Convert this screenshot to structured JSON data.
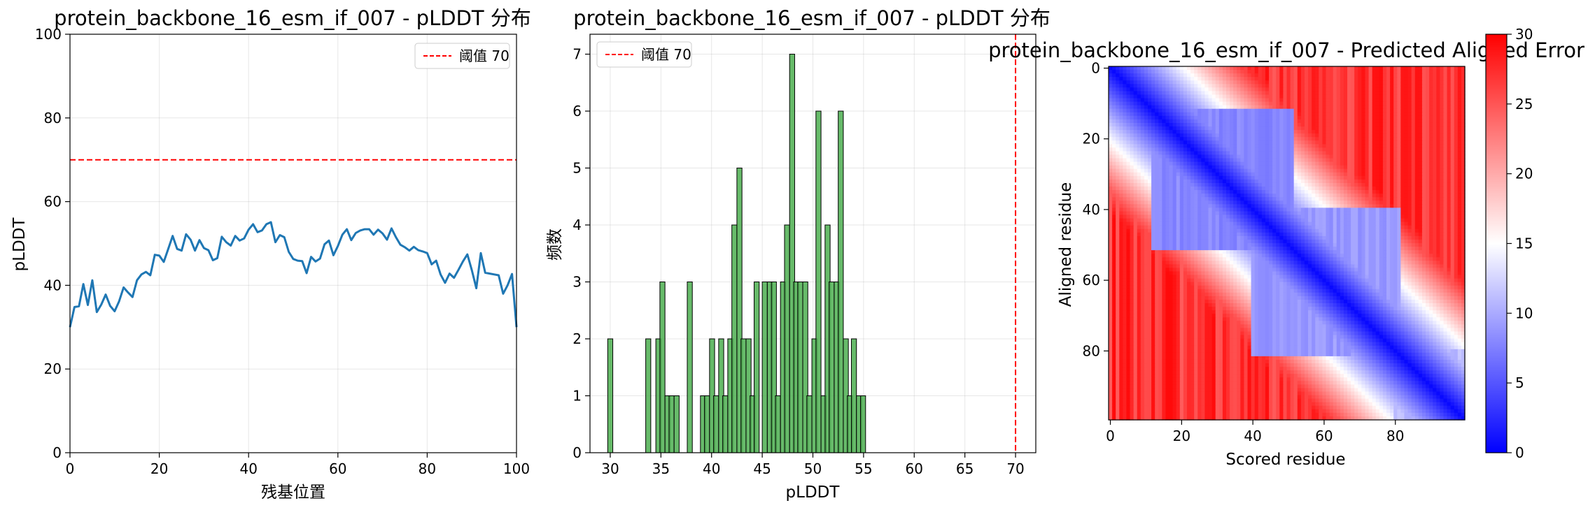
{
  "chart_data": [
    {
      "type": "line",
      "title": "protein_backbone_16_esm_if_007 - pLDDT 分布",
      "xlabel": "残基位置",
      "ylabel": "pLDDT",
      "xlim": [
        0,
        100
      ],
      "ylim": [
        0,
        100
      ],
      "xticks": [
        0,
        20,
        40,
        60,
        80,
        100
      ],
      "yticks": [
        0,
        20,
        40,
        60,
        80,
        100
      ],
      "grid": true,
      "legend_position": "top-right",
      "threshold": {
        "value": 70,
        "label": "阈值 70",
        "color": "#ff0000"
      },
      "line_color": "#1f77b4",
      "x": [
        0,
        1,
        2,
        3,
        4,
        5,
        6,
        7,
        8,
        9,
        10,
        11,
        12,
        13,
        14,
        15,
        16,
        17,
        18,
        19,
        20,
        21,
        22,
        23,
        24,
        25,
        26,
        27,
        28,
        29,
        30,
        31,
        32,
        33,
        34,
        35,
        36,
        37,
        38,
        39,
        40,
        41,
        42,
        43,
        44,
        45,
        46,
        47,
        48,
        49,
        50,
        51,
        52,
        53,
        54,
        55,
        56,
        57,
        58,
        59,
        60,
        61,
        62,
        63,
        64,
        65,
        66,
        67,
        68,
        69,
        70,
        71,
        72,
        73,
        74,
        75,
        76,
        77,
        78,
        79,
        80,
        81,
        82,
        83,
        84,
        85,
        86,
        87,
        88,
        89,
        90,
        91,
        92,
        93,
        94,
        95,
        96,
        97,
        98,
        99,
        100
      ],
      "y": [
        30,
        34.8,
        35,
        40.3,
        35.3,
        41.2,
        33.6,
        35.4,
        37.8,
        35.1,
        33.8,
        36.2,
        39.5,
        38.3,
        37.2,
        41.2,
        42.6,
        43.2,
        42.4,
        47.3,
        47.1,
        45.6,
        48.7,
        51.8,
        48.7,
        48.3,
        52.2,
        50.9,
        48.3,
        50.8,
        48.9,
        48.4,
        46,
        46.5,
        51.6,
        50.3,
        49.5,
        51.8,
        50.7,
        51.2,
        53.3,
        54.6,
        52.7,
        53.1,
        54.6,
        55.1,
        50.3,
        52,
        51.5,
        48,
        46.3,
        45.9,
        45.8,
        42.9,
        46.8,
        45.7,
        46.4,
        49.8,
        50.7,
        47.2,
        49.4,
        52.1,
        53.4,
        50.8,
        52.5,
        53.1,
        53.4,
        53.4,
        52.1,
        53.3,
        52.4,
        50.9,
        53.6,
        51.5,
        49.7,
        49.1,
        48.3,
        49.2,
        48.4,
        48.1,
        47.7,
        45,
        45.9,
        42.6,
        40.6,
        42.8,
        41.8,
        43.7,
        45.7,
        47.4,
        43.6,
        39.3,
        47.7,
        43,
        42.8,
        42.6,
        42.4,
        38,
        40,
        42.7,
        30
      ]
    },
    {
      "type": "bar",
      "title": "protein_backbone_16_esm_if_007 - pLDDT 分布",
      "xlabel": "pLDDT",
      "ylabel": "频数",
      "xlim": [
        28,
        72
      ],
      "ylim": [
        0,
        7.35
      ],
      "xticks": [
        30,
        35,
        40,
        45,
        50,
        55,
        60,
        65,
        70
      ],
      "yticks": [
        0,
        1,
        2,
        3,
        4,
        5,
        6,
        7
      ],
      "grid": true,
      "legend_position": "top-left",
      "threshold": {
        "value": 70,
        "label": "阈值 70",
        "color": "#ff0000"
      },
      "bar_color": "#4caf50",
      "bin_width": 0.5,
      "bin_starts": [
        29.75,
        33.5,
        34.5,
        34.9,
        35.4,
        35.8,
        36.3,
        37.6,
        38.9,
        39.3,
        39.8,
        40.2,
        40.7,
        41.1,
        41.6,
        42,
        42.5,
        42.9,
        43.4,
        43.8,
        44.2,
        45,
        45.5,
        45.9,
        46.3,
        46.8,
        47.2,
        47.7,
        48.1,
        48.5,
        49,
        49.4,
        49.9,
        50.3,
        50.8,
        51.2,
        51.6,
        52.1,
        52.5,
        53,
        53.4,
        53.8,
        54.3,
        54.7
      ],
      "counts": [
        2,
        2,
        2,
        3,
        1,
        1,
        1,
        3,
        1,
        1,
        2,
        1,
        2,
        1,
        2,
        4,
        5,
        2,
        2,
        1,
        3,
        3,
        3,
        3,
        1,
        3,
        4,
        7,
        3,
        3,
        3,
        1,
        2,
        6,
        1,
        4,
        3,
        3,
        6,
        2,
        1,
        2,
        1,
        1
      ]
    },
    {
      "type": "heatmap",
      "title": "protein_backbone_16_esm_if_007 - Predicted Aligned Error",
      "xlabel": "Scored residue",
      "ylabel": "Aligned residue",
      "size": 100,
      "xticks": [
        0,
        20,
        40,
        60,
        80
      ],
      "yticks": [
        0,
        20,
        40,
        60,
        80
      ],
      "colormap": "bwr",
      "vmin": 0,
      "vmax": 30,
      "colorbar_ticks": [
        0,
        5,
        10,
        15,
        20,
        25,
        30
      ],
      "domains": [
        {
          "start": 0,
          "end": 12,
          "value": 10
        },
        {
          "start": 12,
          "end": 52,
          "value": 8
        },
        {
          "start": 40,
          "end": 82,
          "value": 9
        },
        {
          "start": 80,
          "end": 100,
          "value": 11
        }
      ],
      "background_value": 27
    }
  ]
}
